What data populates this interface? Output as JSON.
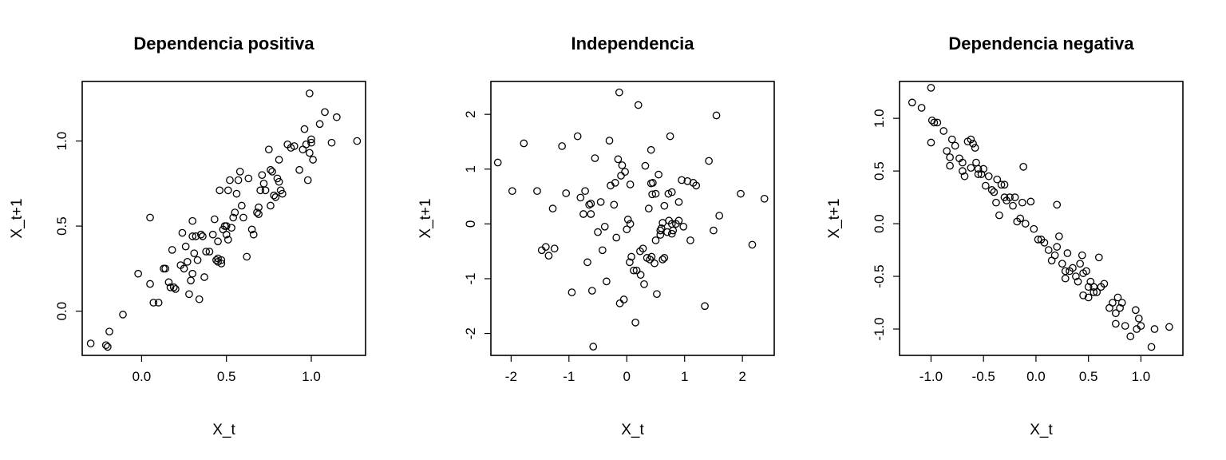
{
  "chart_data": [
    {
      "type": "scatter",
      "title": "Dependencia positiva",
      "xlabel": "X_t",
      "ylabel": "X_t+1",
      "xlim": [
        -0.35,
        1.32
      ],
      "ylim": [
        -0.26,
        1.35
      ],
      "xticks": [
        0.0,
        0.5,
        1.0
      ],
      "xtick_labels": [
        "0.0",
        "0.5",
        "1.0"
      ],
      "yticks": [
        0.0,
        0.5,
        1.0
      ],
      "ytick_labels": [
        "0.0",
        "0.5",
        "1.0"
      ],
      "grid": false,
      "x": [
        -0.3,
        -0.21,
        -0.19,
        -0.2,
        -0.11,
        0.05,
        -0.02,
        0.05,
        0.07,
        0.1,
        0.13,
        0.14,
        0.16,
        0.17,
        0.18,
        0.19,
        0.2,
        0.23,
        0.25,
        0.26,
        0.27,
        0.28,
        0.29,
        0.3,
        0.31,
        0.32,
        0.33,
        0.34,
        0.35,
        0.37,
        0.38,
        0.4,
        0.42,
        0.43,
        0.44,
        0.45,
        0.45,
        0.46,
        0.47,
        0.48,
        0.49,
        0.5,
        0.51,
        0.51,
        0.52,
        0.53,
        0.54,
        0.55,
        0.56,
        0.57,
        0.58,
        0.59,
        0.6,
        0.62,
        0.63,
        0.65,
        0.66,
        0.68,
        0.69,
        0.7,
        0.71,
        0.72,
        0.73,
        0.75,
        0.76,
        0.77,
        0.78,
        0.79,
        0.8,
        0.81,
        0.82,
        0.83,
        0.86,
        0.88,
        0.9,
        0.93,
        0.95,
        0.96,
        0.97,
        0.98,
        0.99,
        1.0,
        1.01,
        1.05,
        1.08,
        1.12,
        1.15,
        1.27,
        0.3,
        0.24,
        0.3,
        0.45,
        0.47,
        0.36,
        0.5,
        0.69,
        0.99,
        1.0,
        0.76,
        0.81
      ],
      "y": [
        -0.19,
        -0.2,
        -0.12,
        -0.21,
        -0.02,
        0.55,
        0.22,
        0.16,
        0.05,
        0.05,
        0.25,
        0.25,
        0.17,
        0.14,
        0.36,
        0.14,
        0.13,
        0.27,
        0.25,
        0.38,
        0.29,
        0.1,
        0.18,
        0.22,
        0.34,
        0.44,
        0.3,
        0.07,
        0.45,
        0.2,
        0.35,
        0.35,
        0.45,
        0.54,
        0.3,
        0.41,
        0.29,
        0.71,
        0.3,
        0.48,
        0.5,
        0.5,
        0.42,
        0.71,
        0.77,
        0.49,
        0.55,
        0.58,
        0.69,
        0.77,
        0.82,
        0.62,
        0.55,
        0.32,
        0.78,
        0.48,
        0.45,
        0.58,
        0.61,
        0.71,
        0.8,
        0.75,
        0.71,
        0.95,
        0.83,
        0.82,
        0.68,
        0.67,
        0.78,
        0.89,
        0.71,
        0.69,
        0.98,
        0.96,
        0.97,
        0.83,
        0.95,
        1.07,
        0.98,
        0.77,
        1.28,
        0.99,
        0.89,
        1.1,
        1.17,
        0.99,
        1.14,
        1.0,
        0.53,
        0.46,
        0.44,
        0.31,
        0.28,
        0.44,
        0.45,
        0.57,
        0.93,
        1.01,
        0.62,
        0.76
      ]
    },
    {
      "type": "scatter",
      "title": "Independencia",
      "xlabel": "X_t",
      "ylabel": "X_t+1",
      "xlim": [
        -2.35,
        2.55
      ],
      "ylim": [
        -2.4,
        2.6
      ],
      "xticks": [
        -2,
        -1,
        0,
        1,
        2
      ],
      "xtick_labels": [
        "-2",
        "-1",
        "0",
        "1",
        "2"
      ],
      "yticks": [
        -2,
        -1,
        0,
        1,
        2
      ],
      "ytick_labels": [
        "-2",
        "-1",
        "0",
        "1",
        "2"
      ],
      "grid": false,
      "x": [
        -2.23,
        -1.98,
        -1.78,
        -1.55,
        -1.47,
        -1.4,
        -1.35,
        -1.28,
        -1.25,
        -1.12,
        -1.05,
        -0.95,
        -0.85,
        -0.8,
        -0.75,
        -0.72,
        -0.68,
        -0.65,
        -0.62,
        -0.6,
        -0.58,
        -0.55,
        -0.5,
        -0.45,
        -0.42,
        -0.38,
        -0.35,
        -0.3,
        -0.28,
        -0.22,
        -0.18,
        -0.15,
        -0.12,
        -0.1,
        -0.08,
        -0.05,
        -0.03,
        0.0,
        0.02,
        0.05,
        0.08,
        0.12,
        0.15,
        0.2,
        0.23,
        0.28,
        0.3,
        0.32,
        0.35,
        0.38,
        0.4,
        0.42,
        0.45,
        0.48,
        0.5,
        0.52,
        0.55,
        0.58,
        0.6,
        0.62,
        0.65,
        0.7,
        0.72,
        0.75,
        0.78,
        0.8,
        0.85,
        0.9,
        0.95,
        1.05,
        1.1,
        1.15,
        1.2,
        1.35,
        1.42,
        1.5,
        1.55,
        1.6,
        1.97,
        2.17,
        2.38,
        0.98,
        -0.62,
        0.24,
        -0.13,
        0.17,
        0.73,
        0.58,
        0.44,
        0.9,
        0.62,
        0.78,
        0.43,
        0.65,
        0.42,
        0.5,
        -0.2,
        0.06,
        0.78,
        0.06
      ],
      "y": [
        1.12,
        0.6,
        1.47,
        0.6,
        -0.48,
        -0.42,
        -0.58,
        0.28,
        -0.45,
        1.42,
        0.56,
        -1.25,
        1.6,
        0.48,
        0.18,
        0.6,
        -0.7,
        0.35,
        0.18,
        -1.22,
        -2.24,
        1.2,
        -0.15,
        0.4,
        -0.48,
        -0.05,
        -1.05,
        1.52,
        0.7,
        0.35,
        -0.25,
        1.18,
        -1.45,
        0.88,
        1.07,
        -1.38,
        0.95,
        -0.1,
        0.08,
        -0.7,
        -0.6,
        -0.85,
        -1.8,
        2.17,
        -0.5,
        -0.45,
        -1.1,
        1.06,
        -0.62,
        0.28,
        -0.65,
        1.35,
        0.75,
        -0.72,
        -0.3,
        -1.28,
        0.9,
        -0.2,
        -0.08,
        0.02,
        0.33,
        -0.15,
        0.55,
        1.6,
        0.58,
        -0.12,
        0.0,
        0.4,
        0.8,
        0.78,
        -0.3,
        0.75,
        0.7,
        -1.5,
        1.15,
        -0.12,
        1.98,
        0.15,
        0.55,
        -0.38,
        0.46,
        -0.05,
        0.37,
        -0.93,
        2.4,
        -0.85,
        0.06,
        -0.12,
        0.54,
        0.06,
        -0.65,
        -0.18,
        -0.6,
        -0.62,
        0.74,
        0.55,
        0.75,
        0.72,
        0.0,
        0.0
      ]
    },
    {
      "type": "scatter",
      "title": "Dependencia negativa",
      "xlabel": "X_t",
      "ylabel": "X_t+1",
      "xlim": [
        -1.3,
        1.4
      ],
      "ylim": [
        -1.25,
        1.35
      ],
      "xticks": [
        -1.0,
        -0.5,
        0.0,
        0.5,
        1.0
      ],
      "xtick_labels": [
        "-1.0",
        "-0.5",
        "0.0",
        "0.5",
        "1.0"
      ],
      "yticks": [
        -1.0,
        -0.5,
        0.0,
        0.5,
        1.0
      ],
      "ytick_labels": [
        "-1.0",
        "-0.5",
        "0.0",
        "0.5",
        "1.0"
      ],
      "grid": false,
      "x": [
        -1.18,
        -1.09,
        -1.0,
        -0.99,
        -0.97,
        -0.94,
        -0.88,
        -0.85,
        -0.82,
        -0.8,
        -0.77,
        -0.73,
        -0.7,
        -0.68,
        -0.65,
        -0.62,
        -0.6,
        -0.57,
        -0.55,
        -0.52,
        -0.5,
        -0.48,
        -0.45,
        -0.42,
        -0.4,
        -0.38,
        -0.35,
        -0.33,
        -0.3,
        -0.28,
        -0.25,
        -0.22,
        -0.2,
        -0.18,
        -0.15,
        -0.12,
        -0.1,
        -0.05,
        -0.02,
        0.02,
        0.05,
        0.08,
        0.12,
        0.15,
        0.18,
        0.2,
        0.22,
        0.25,
        0.28,
        0.3,
        0.32,
        0.35,
        0.38,
        0.4,
        0.42,
        0.45,
        0.48,
        0.5,
        0.52,
        0.55,
        0.58,
        0.6,
        0.62,
        0.65,
        0.7,
        0.73,
        0.76,
        0.78,
        0.8,
        0.82,
        0.85,
        0.9,
        0.95,
        0.98,
        1.0,
        1.1,
        1.13,
        1.27,
        -1.0,
        -0.7,
        -0.55,
        -0.3,
        0.2,
        0.45,
        0.5,
        -0.82,
        -0.62,
        -0.58,
        -0.37,
        -0.13,
        0.28,
        0.44,
        0.55,
        0.76,
        0.96
      ],
      "y": [
        1.15,
        1.1,
        1.29,
        0.98,
        0.96,
        0.96,
        0.88,
        0.69,
        0.63,
        0.8,
        0.74,
        0.62,
        0.58,
        0.45,
        0.78,
        0.8,
        0.76,
        0.58,
        0.52,
        0.47,
        0.52,
        0.36,
        0.45,
        0.32,
        0.3,
        0.2,
        0.08,
        0.37,
        0.25,
        0.22,
        0.25,
        0.17,
        0.25,
        0.02,
        0.05,
        0.54,
        0.0,
        0.21,
        -0.05,
        -0.15,
        -0.15,
        -0.18,
        -0.25,
        -0.35,
        -0.3,
        -0.22,
        -0.12,
        -0.38,
        -0.52,
        -0.28,
        -0.45,
        -0.42,
        -0.5,
        -0.55,
        -0.38,
        -0.68,
        -0.45,
        -0.6,
        -0.55,
        -0.6,
        -0.65,
        -0.32,
        -0.6,
        -0.57,
        -0.8,
        -0.75,
        -0.85,
        -0.7,
        -0.8,
        -0.75,
        -0.97,
        -1.07,
        -0.82,
        -0.9,
        -0.97,
        -1.17,
        -1.0,
        -0.98,
        0.77,
        0.5,
        0.47,
        0.37,
        0.18,
        -0.47,
        -0.7,
        0.55,
        0.53,
        0.72,
        0.42,
        0.2,
        -0.45,
        -0.3,
        -0.65,
        -0.95,
        -1.0
      ]
    }
  ]
}
